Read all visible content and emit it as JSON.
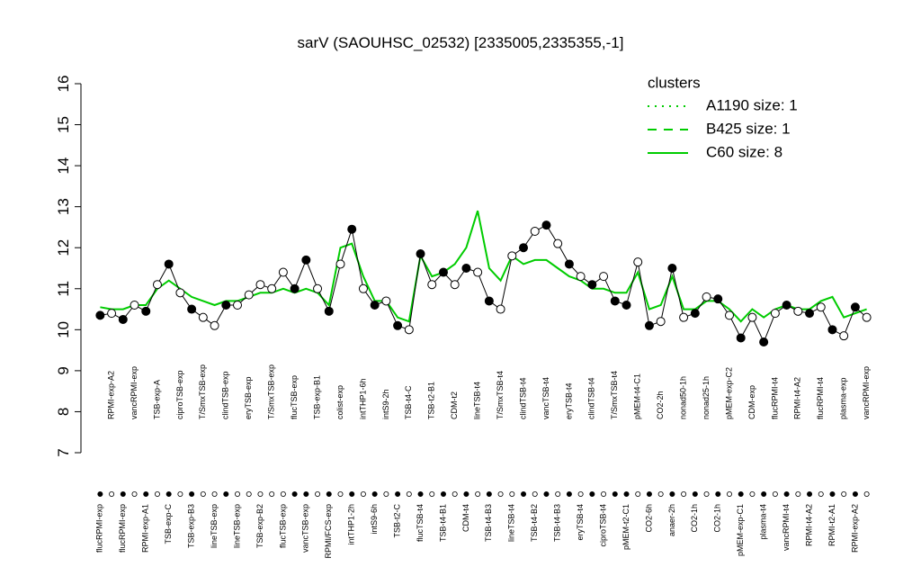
{
  "chart_data": {
    "type": "line",
    "title": "sarV (SAOUHSC_02532) [2335005,2335355,-1]",
    "ylim": [
      7,
      16
    ],
    "yticks": [
      7,
      8,
      9,
      10,
      11,
      12,
      13,
      14,
      15,
      16
    ],
    "categories": [
      "flucRPMI-exp",
      "RPMI-exp-A2",
      "flucRPMI-exp",
      "vancRPMI-exp",
      "RPMI-exp-A1",
      "TSB-exp-A",
      "TSB-exp-C",
      "ciproTSB-exp",
      "TSB-exp-B3",
      "T/SmxTSB-exp",
      "lineTSB-exp",
      "clindTSB-exp",
      "lineTSB-exp",
      "eryTSB-exp",
      "TSB-exp-B2",
      "T/SmxTSB-exp",
      "flucTSB-exp",
      "flucTSB-exp",
      "vancTSB-exp",
      "TSB-exp-B1",
      "RPMI/FCS-exp",
      "colist-exp",
      "intTHP1-2h",
      "intTHP1-6h",
      "intS9-6h",
      "intS9-2h",
      "TSB-t2-C",
      "TSB-t4-C",
      "flucTSB-t4",
      "TSB-t2-B1",
      "TSB-t4-B1",
      "CDM-t2",
      "CDM-t4",
      "lineTSB-t4",
      "TSB-t4-B3",
      "T/SmxTSB-t4",
      "lineTSB-t4",
      "clindTSB-t4",
      "TSB-t4-B2",
      "vancTSB-t4",
      "TSB-t4-B3",
      "eryTSB-t4",
      "eryTSB-t4",
      "clindTSB-t4",
      "ciproTSB-t4",
      "T/SmxTSB-t4",
      "pMEM-t2-C1",
      "pMEM-t4-C1",
      "CO2-6h",
      "CO2-2h",
      "anaer-2h",
      "nonad50-1h",
      "CO2-1h",
      "nonad25-1h",
      "CO2-1h",
      "pMEM-exp-C2",
      "pMEM-exp-C1",
      "CDM-exp",
      "plasma-t4",
      "flucRPMI-t4",
      "vancRPMI-t4",
      "RPMI-t4-A2",
      "RPMI-t4-A2",
      "flucRPMI-t4",
      "RPMI-t2-A1",
      "plasma-exp",
      "RPMI-exp-A2",
      "vancRPMI-exp"
    ],
    "points": {
      "color": "#000000",
      "values": [
        10.35,
        10.4,
        10.25,
        10.6,
        10.45,
        11.1,
        11.6,
        10.9,
        10.5,
        10.3,
        10.1,
        10.6,
        10.6,
        10.85,
        11.1,
        11.0,
        11.4,
        11.0,
        11.7,
        11.0,
        10.45,
        11.6,
        12.45,
        11.0,
        10.6,
        10.7,
        10.1,
        10.0,
        11.85,
        11.1,
        11.4,
        11.1,
        11.5,
        11.4,
        10.7,
        10.5,
        11.8,
        12.0,
        12.4,
        12.55,
        12.1,
        11.6,
        11.3,
        11.1,
        11.3,
        10.7,
        10.6,
        11.65,
        10.1,
        10.2,
        11.5,
        10.3,
        10.4,
        10.8,
        10.75,
        10.35,
        9.8,
        10.3,
        9.7,
        10.4,
        10.6,
        10.45,
        10.4,
        10.55,
        10.0,
        9.85,
        10.55,
        10.3
      ],
      "filled": [
        true,
        false,
        true,
        false,
        true,
        false,
        true,
        false,
        true,
        false,
        false,
        true,
        false,
        false,
        false,
        false,
        false,
        true,
        true,
        false,
        true,
        false,
        true,
        false,
        true,
        false,
        true,
        false,
        true,
        false,
        true,
        false,
        true,
        false,
        true,
        false,
        false,
        true,
        false,
        true,
        false,
        true,
        false,
        true,
        false,
        true,
        true,
        false,
        true,
        false,
        true,
        false,
        true,
        false,
        true,
        false,
        true,
        false,
        true,
        false,
        true,
        false,
        true,
        false,
        true,
        false,
        true,
        false
      ]
    },
    "cluster_line": {
      "color": "#00cc00",
      "values": [
        10.55,
        10.5,
        10.5,
        10.6,
        10.6,
        11.0,
        11.2,
        11.0,
        10.8,
        10.7,
        10.6,
        10.7,
        10.7,
        10.8,
        10.9,
        10.9,
        11.0,
        10.9,
        11.0,
        10.9,
        10.6,
        12.0,
        12.1,
        11.3,
        10.7,
        10.7,
        10.3,
        10.2,
        11.8,
        11.3,
        11.4,
        11.6,
        12.0,
        12.9,
        11.5,
        11.2,
        11.8,
        11.6,
        11.7,
        11.7,
        11.5,
        11.3,
        11.2,
        11.0,
        11.0,
        10.9,
        10.9,
        11.4,
        10.5,
        10.6,
        11.3,
        10.5,
        10.5,
        10.7,
        10.7,
        10.5,
        10.2,
        10.5,
        10.3,
        10.5,
        10.6,
        10.5,
        10.5,
        10.7,
        10.8,
        10.3,
        10.4,
        10.5
      ]
    },
    "legend": {
      "title": "clusters",
      "color": "#00cc00",
      "position": "top-right",
      "entries": [
        {
          "name": "A1190 size: 1",
          "style": "dotted"
        },
        {
          "name": "B425 size: 1",
          "style": "dashed"
        },
        {
          "name": "C60 size: 8",
          "style": "solid"
        }
      ]
    }
  }
}
